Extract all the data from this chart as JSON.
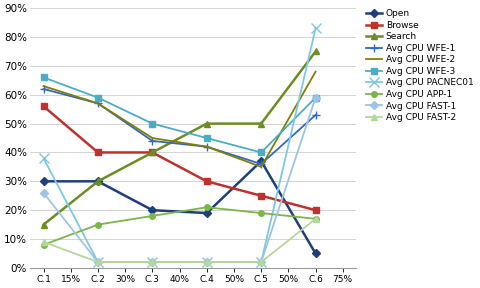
{
  "x_labels": [
    "C.1",
    "15%",
    "C.2",
    "30%",
    "C.3",
    "40%",
    "C.4",
    "50%",
    "C.5",
    "50%",
    "C.6",
    "75%"
  ],
  "x_positions": [
    0,
    1,
    2,
    3,
    4,
    5,
    6,
    7,
    8,
    9,
    10,
    11
  ],
  "data_x": [
    0,
    2,
    4,
    6,
    8,
    10
  ],
  "series": [
    {
      "name": "Open",
      "color": "#1F3E7C",
      "marker": "D",
      "markersize": 4,
      "linewidth": 1.8,
      "linestyle": "-",
      "values": [
        0.3,
        0.3,
        0.2,
        0.19,
        0.37,
        0.05
      ]
    },
    {
      "name": "Browse",
      "color": "#C0312B",
      "marker": "s",
      "markersize": 4,
      "linewidth": 1.8,
      "linestyle": "-",
      "values": [
        0.56,
        0.4,
        0.4,
        0.3,
        0.25,
        0.2
      ]
    },
    {
      "name": "Search",
      "color": "#6B8E23",
      "marker": "^",
      "markersize": 5,
      "linewidth": 1.8,
      "linestyle": "-",
      "values": [
        0.15,
        0.3,
        0.4,
        0.5,
        0.5,
        0.75
      ]
    },
    {
      "name": "Avg CPU WFE-1",
      "color": "#3366CC",
      "marker": "+",
      "markersize": 6,
      "linewidth": 1.3,
      "linestyle": "-",
      "values": [
        0.62,
        0.57,
        0.44,
        0.42,
        0.36,
        0.53
      ]
    },
    {
      "name": "Avg CPU WFE-2",
      "color": "#808000",
      "marker": "None",
      "markersize": 0,
      "linewidth": 1.3,
      "linestyle": "-",
      "values": [
        0.63,
        0.57,
        0.45,
        0.42,
        0.35,
        0.68
      ]
    },
    {
      "name": "Avg CPU WFE-3",
      "color": "#4BACC6",
      "marker": "s",
      "markersize": 5,
      "linewidth": 1.3,
      "linestyle": "-",
      "values": [
        0.66,
        0.59,
        0.5,
        0.45,
        0.4,
        0.59
      ]
    },
    {
      "name": "Avg CPU PACNEC01",
      "color": "#7EC8E3",
      "marker": "x",
      "markersize": 7,
      "linewidth": 1.3,
      "linestyle": "-",
      "values": [
        0.38,
        0.02,
        0.02,
        0.02,
        0.02,
        0.83
      ]
    },
    {
      "name": "Avg CPU APP-1",
      "color": "#7AB648",
      "marker": "o",
      "markersize": 4,
      "linewidth": 1.3,
      "linestyle": "-",
      "values": [
        0.08,
        0.15,
        0.18,
        0.21,
        0.19,
        0.17
      ]
    },
    {
      "name": "Avg CPU FAST-1",
      "color": "#9DC3E6",
      "marker": "D",
      "markersize": 4,
      "linewidth": 1.3,
      "linestyle": "-",
      "values": [
        0.26,
        0.02,
        0.02,
        0.02,
        0.02,
        0.59
      ]
    },
    {
      "name": "Avg CPU FAST-2",
      "color": "#B4D89C",
      "marker": "^",
      "markersize": 4,
      "linewidth": 1.3,
      "linestyle": "-",
      "values": [
        0.09,
        0.02,
        0.02,
        0.02,
        0.02,
        0.17
      ]
    }
  ],
  "ylim": [
    0.0,
    0.9
  ],
  "yticks": [
    0.0,
    0.1,
    0.2,
    0.3,
    0.4,
    0.5,
    0.6,
    0.7,
    0.8,
    0.9
  ],
  "background_color": "#ffffff",
  "grid_color": "#cccccc"
}
